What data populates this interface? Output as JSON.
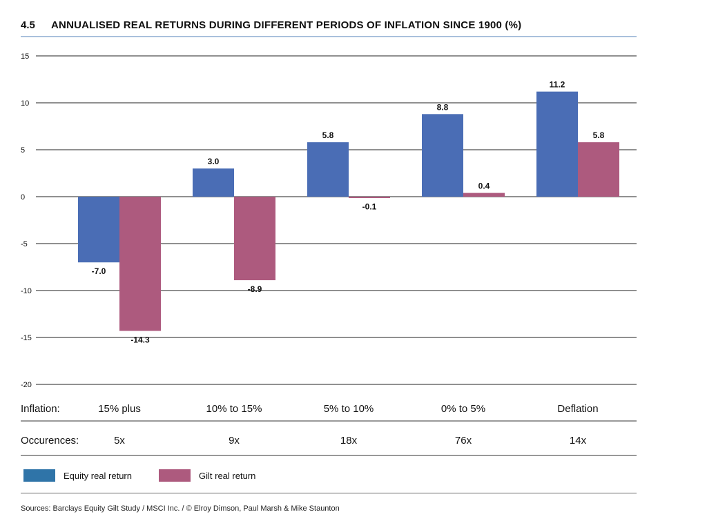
{
  "header": {
    "number": "4.5",
    "title": "ANNUALISED REAL RETURNS DURING DIFFERENT PERIODS OF INFLATION SINCE 1900 (%)"
  },
  "chart_data": {
    "type": "bar",
    "categories": [
      "15% plus",
      "10% to 15%",
      "5% to 10%",
      "0% to 5%",
      "Deflation"
    ],
    "series": [
      {
        "name": "Equity real return",
        "values": [
          -7.0,
          3.0,
          5.8,
          8.8,
          11.2
        ],
        "labels": [
          "-7.0",
          "3.0",
          "5.8",
          "8.8",
          "11.2"
        ],
        "color": "#4a6db5"
      },
      {
        "name": "Gilt real return",
        "values": [
          -14.3,
          -8.9,
          -0.1,
          0.4,
          5.8
        ],
        "labels": [
          "-14.3",
          "-8.9",
          "-0.1",
          "0.4",
          "5.8"
        ],
        "color": "#ad5a7e"
      }
    ],
    "ylim": [
      -20,
      15
    ],
    "yticks": [
      15,
      10,
      5,
      0,
      -5,
      -10,
      -15,
      -20
    ],
    "grid": true
  },
  "table": {
    "rows": [
      {
        "label": "Inflation:",
        "values": [
          "15% plus",
          "10% to 15%",
          "5% to 10%",
          "0% to 5%",
          "Deflation"
        ]
      },
      {
        "label": "Occurences:",
        "values": [
          "5x",
          "9x",
          "18x",
          "76x",
          "14x"
        ]
      }
    ]
  },
  "legend": {
    "items": [
      {
        "label": "Equity real return",
        "color": "#2f74a8"
      },
      {
        "label": "Gilt real return",
        "color": "#ad5a7e"
      }
    ]
  },
  "source": "Sources: Barclays Equity Gilt Study / MSCI Inc. / © Elroy Dimson, Paul Marsh & Mike Staunton"
}
